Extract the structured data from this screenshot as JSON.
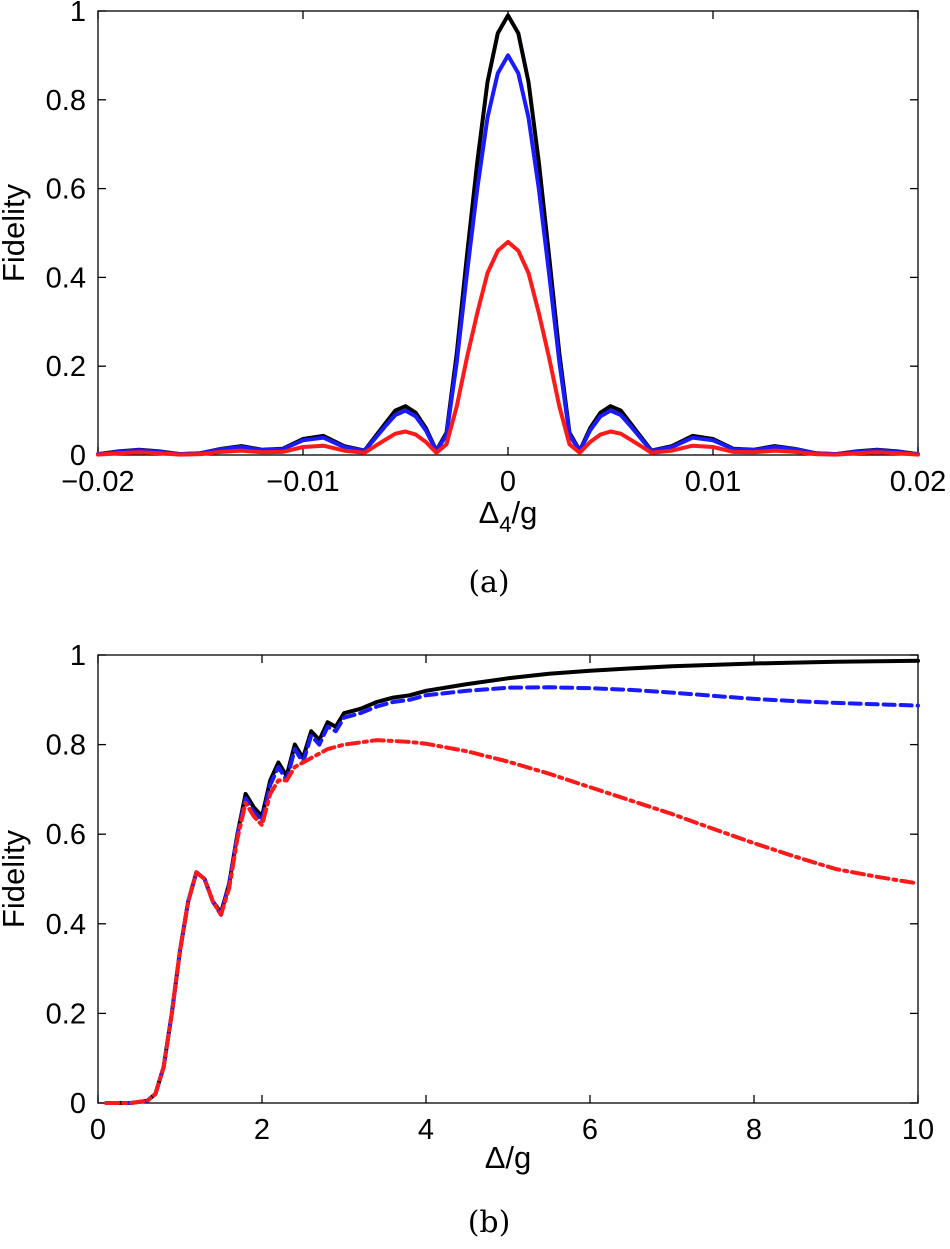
{
  "chart_data": [
    {
      "type": "line",
      "caption": "(a)",
      "ylabel": "Fidelity",
      "xlabel_main": "Δ",
      "xlabel_sub": "4",
      "xlabel_tail": "/g",
      "xlim": [
        -0.02,
        0.02
      ],
      "ylim": [
        0,
        1
      ],
      "xticks": [
        {
          "value": -0.02,
          "label": "−0.02"
        },
        {
          "value": -0.01,
          "label": "−0.01"
        },
        {
          "value": 0,
          "label": "0"
        },
        {
          "value": 0.01,
          "label": "0.01"
        },
        {
          "value": 0.02,
          "label": "0.02"
        }
      ],
      "yticks": [
        {
          "value": 0,
          "label": "0"
        },
        {
          "value": 0.2,
          "label": "0.2"
        },
        {
          "value": 0.4,
          "label": "0.4"
        },
        {
          "value": 0.6,
          "label": "0.6"
        },
        {
          "value": 0.8,
          "label": "0.8"
        },
        {
          "value": 1,
          "label": "1"
        }
      ],
      "grid": false,
      "series": [
        {
          "color": "#000000",
          "style": "solid",
          "peak": 0.99,
          "x": [
            -0.02,
            -0.019,
            -0.018,
            -0.017,
            -0.016,
            -0.015,
            -0.014,
            -0.013,
            -0.012,
            -0.011,
            -0.01,
            -0.009,
            -0.008,
            -0.007,
            -0.006,
            -0.0055,
            -0.005,
            -0.0045,
            -0.004,
            -0.0035,
            -0.003,
            -0.0025,
            -0.002,
            -0.0015,
            -0.001,
            -0.0005,
            0,
            0.0005,
            0.001,
            0.0015,
            0.002,
            0.0025,
            0.003,
            0.0035,
            0.004,
            0.0045,
            0.005,
            0.0055,
            0.006,
            0.007,
            0.008,
            0.009,
            0.01,
            0.011,
            0.012,
            0.013,
            0.014,
            0.015,
            0.016,
            0.017,
            0.018,
            0.019,
            0.02
          ],
          "y": [
            0.002,
            0.008,
            0.012,
            0.008,
            0.002,
            0.004,
            0.014,
            0.02,
            0.012,
            0.014,
            0.036,
            0.043,
            0.02,
            0.01,
            0.07,
            0.1,
            0.11,
            0.095,
            0.06,
            0.01,
            0.05,
            0.23,
            0.45,
            0.66,
            0.84,
            0.95,
            0.99,
            0.95,
            0.84,
            0.66,
            0.45,
            0.23,
            0.05,
            0.01,
            0.06,
            0.095,
            0.11,
            0.1,
            0.07,
            0.01,
            0.02,
            0.043,
            0.036,
            0.014,
            0.012,
            0.02,
            0.014,
            0.004,
            0.002,
            0.008,
            0.012,
            0.008,
            0.002
          ]
        },
        {
          "color": "#1a1aff",
          "style": "solid",
          "peak": 0.9,
          "x": [
            -0.02,
            -0.019,
            -0.018,
            -0.017,
            -0.016,
            -0.015,
            -0.014,
            -0.013,
            -0.012,
            -0.011,
            -0.01,
            -0.009,
            -0.008,
            -0.007,
            -0.006,
            -0.0055,
            -0.005,
            -0.0045,
            -0.004,
            -0.0035,
            -0.003,
            -0.0025,
            -0.002,
            -0.0015,
            -0.001,
            -0.0005,
            0,
            0.0005,
            0.001,
            0.0015,
            0.002,
            0.0025,
            0.003,
            0.0035,
            0.004,
            0.0045,
            0.005,
            0.0055,
            0.006,
            0.007,
            0.008,
            0.009,
            0.01,
            0.011,
            0.012,
            0.013,
            0.014,
            0.015,
            0.016,
            0.017,
            0.018,
            0.019,
            0.02
          ],
          "y": [
            0.002,
            0.007,
            0.011,
            0.007,
            0.002,
            0.004,
            0.013,
            0.018,
            0.011,
            0.013,
            0.033,
            0.039,
            0.018,
            0.009,
            0.064,
            0.09,
            0.1,
            0.087,
            0.055,
            0.009,
            0.045,
            0.21,
            0.41,
            0.6,
            0.76,
            0.86,
            0.9,
            0.86,
            0.76,
            0.6,
            0.41,
            0.21,
            0.045,
            0.009,
            0.055,
            0.087,
            0.1,
            0.09,
            0.064,
            0.009,
            0.018,
            0.039,
            0.033,
            0.013,
            0.011,
            0.018,
            0.013,
            0.004,
            0.002,
            0.007,
            0.011,
            0.007,
            0.002
          ]
        },
        {
          "color": "#ff1a1a",
          "style": "solid",
          "peak": 0.48,
          "x": [
            -0.02,
            -0.019,
            -0.018,
            -0.017,
            -0.016,
            -0.015,
            -0.014,
            -0.013,
            -0.012,
            -0.011,
            -0.01,
            -0.009,
            -0.008,
            -0.007,
            -0.006,
            -0.0055,
            -0.005,
            -0.0045,
            -0.004,
            -0.0035,
            -0.003,
            -0.0025,
            -0.002,
            -0.0015,
            -0.001,
            -0.0005,
            0,
            0.0005,
            0.001,
            0.0015,
            0.002,
            0.0025,
            0.003,
            0.0035,
            0.004,
            0.0045,
            0.005,
            0.0055,
            0.006,
            0.007,
            0.008,
            0.009,
            0.01,
            0.011,
            0.012,
            0.013,
            0.014,
            0.015,
            0.016,
            0.017,
            0.018,
            0.019,
            0.02
          ],
          "y": [
            0.001,
            0.004,
            0.006,
            0.004,
            0.001,
            0.002,
            0.007,
            0.01,
            0.006,
            0.007,
            0.018,
            0.021,
            0.01,
            0.005,
            0.034,
            0.048,
            0.053,
            0.046,
            0.029,
            0.005,
            0.024,
            0.11,
            0.22,
            0.32,
            0.41,
            0.46,
            0.48,
            0.46,
            0.41,
            0.32,
            0.22,
            0.11,
            0.024,
            0.005,
            0.029,
            0.046,
            0.053,
            0.048,
            0.034,
            0.005,
            0.01,
            0.021,
            0.018,
            0.007,
            0.006,
            0.01,
            0.007,
            0.002,
            0.001,
            0.004,
            0.006,
            0.004,
            0.001
          ]
        }
      ]
    },
    {
      "type": "line",
      "caption": "(b)",
      "ylabel": "Fidelity",
      "xlabel": "Δ/g",
      "xlim": [
        0,
        10
      ],
      "ylim": [
        0,
        1
      ],
      "xticks": [
        {
          "value": 0,
          "label": "0"
        },
        {
          "value": 2,
          "label": "2"
        },
        {
          "value": 4,
          "label": "4"
        },
        {
          "value": 6,
          "label": "6"
        },
        {
          "value": 8,
          "label": "8"
        },
        {
          "value": 10,
          "label": "10"
        }
      ],
      "yticks": [
        {
          "value": 0,
          "label": "0"
        },
        {
          "value": 0.2,
          "label": "0.2"
        },
        {
          "value": 0.4,
          "label": "0.4"
        },
        {
          "value": 0.6,
          "label": "0.6"
        },
        {
          "value": 0.8,
          "label": "0.8"
        },
        {
          "value": 1,
          "label": "1"
        }
      ],
      "grid": false,
      "series": [
        {
          "color": "#000000",
          "style": "solid",
          "x": [
            0.1,
            0.4,
            0.6,
            0.7,
            0.8,
            0.9,
            1.0,
            1.1,
            1.2,
            1.3,
            1.4,
            1.5,
            1.6,
            1.7,
            1.8,
            1.9,
            2.0,
            2.1,
            2.2,
            2.3,
            2.4,
            2.5,
            2.6,
            2.7,
            2.8,
            2.9,
            3.0,
            3.2,
            3.4,
            3.6,
            3.8,
            4.0,
            4.5,
            5.0,
            5.5,
            6.0,
            6.5,
            7.0,
            7.5,
            8.0,
            8.5,
            9.0,
            9.5,
            10.0
          ],
          "y": [
            0,
            0,
            0.005,
            0.02,
            0.08,
            0.2,
            0.34,
            0.45,
            0.515,
            0.5,
            0.45,
            0.425,
            0.49,
            0.6,
            0.69,
            0.66,
            0.64,
            0.72,
            0.76,
            0.73,
            0.8,
            0.77,
            0.83,
            0.81,
            0.85,
            0.84,
            0.87,
            0.88,
            0.895,
            0.905,
            0.91,
            0.92,
            0.935,
            0.948,
            0.958,
            0.965,
            0.97,
            0.975,
            0.978,
            0.981,
            0.983,
            0.985,
            0.986,
            0.987
          ]
        },
        {
          "color": "#1a1aff",
          "style": "dashed",
          "x": [
            0.1,
            0.4,
            0.6,
            0.7,
            0.8,
            0.9,
            1.0,
            1.1,
            1.2,
            1.3,
            1.4,
            1.5,
            1.6,
            1.7,
            1.8,
            1.9,
            2.0,
            2.1,
            2.2,
            2.3,
            2.4,
            2.5,
            2.6,
            2.7,
            2.8,
            2.9,
            3.0,
            3.2,
            3.4,
            3.6,
            3.8,
            4.0,
            4.5,
            5.0,
            5.5,
            6.0,
            6.5,
            7.0,
            7.5,
            8.0,
            8.5,
            9.0,
            9.5,
            10.0
          ],
          "y": [
            0,
            0,
            0.005,
            0.02,
            0.08,
            0.2,
            0.34,
            0.45,
            0.515,
            0.5,
            0.45,
            0.42,
            0.49,
            0.6,
            0.68,
            0.65,
            0.63,
            0.71,
            0.75,
            0.72,
            0.79,
            0.76,
            0.82,
            0.8,
            0.84,
            0.83,
            0.86,
            0.87,
            0.885,
            0.895,
            0.9,
            0.91,
            0.92,
            0.927,
            0.928,
            0.926,
            0.922,
            0.916,
            0.909,
            0.902,
            0.897,
            0.893,
            0.89,
            0.887
          ]
        },
        {
          "color": "#ff1a1a",
          "style": "dashdot",
          "x": [
            0.1,
            0.4,
            0.6,
            0.7,
            0.8,
            0.9,
            1.0,
            1.1,
            1.2,
            1.3,
            1.4,
            1.5,
            1.6,
            1.7,
            1.8,
            1.9,
            2.0,
            2.1,
            2.2,
            2.3,
            2.4,
            2.6,
            2.8,
            3.0,
            3.2,
            3.4,
            3.6,
            3.8,
            4.0,
            4.5,
            5.0,
            5.5,
            6.0,
            6.5,
            7.0,
            7.5,
            8.0,
            8.5,
            9.0,
            9.5,
            10.0
          ],
          "y": [
            0,
            0,
            0.005,
            0.02,
            0.08,
            0.2,
            0.34,
            0.45,
            0.515,
            0.5,
            0.45,
            0.42,
            0.48,
            0.59,
            0.67,
            0.64,
            0.62,
            0.69,
            0.72,
            0.72,
            0.75,
            0.77,
            0.79,
            0.8,
            0.805,
            0.81,
            0.808,
            0.806,
            0.802,
            0.785,
            0.762,
            0.735,
            0.705,
            0.675,
            0.645,
            0.612,
            0.58,
            0.55,
            0.522,
            0.505,
            0.49
          ]
        }
      ]
    }
  ]
}
